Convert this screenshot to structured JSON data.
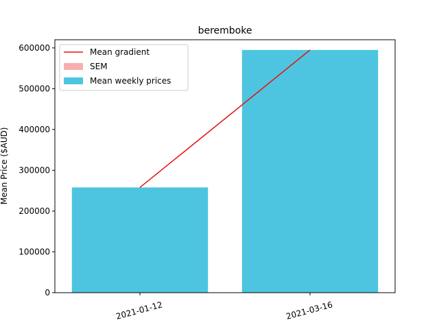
{
  "chart_data": {
    "type": "bar",
    "title": "beremboke",
    "xlabel": "",
    "ylabel": "Mean Price ($AUD)",
    "ylim": [
      0,
      620000
    ],
    "yticks": [
      0,
      100000,
      200000,
      300000,
      400000,
      500000,
      600000
    ],
    "ytick_labels": [
      "0",
      "100000",
      "200000",
      "300000",
      "400000",
      "500000",
      "600000"
    ],
    "categories": [
      "2021-01-12",
      "2021-03-16"
    ],
    "series": [
      {
        "name": "Mean weekly prices",
        "kind": "bar",
        "color": "#4dc5e0",
        "values": [
          258000,
          595000
        ]
      },
      {
        "name": "Mean gradient",
        "kind": "line",
        "color": "#e8110f",
        "values": [
          258000,
          595000
        ]
      },
      {
        "name": "SEM",
        "kind": "errorbar",
        "color": "#f7aeaf",
        "values": [
          0,
          0
        ]
      }
    ],
    "legend": {
      "position": "top-left",
      "entries": [
        "Mean gradient",
        "SEM",
        "Mean weekly prices"
      ]
    },
    "grid": false
  }
}
